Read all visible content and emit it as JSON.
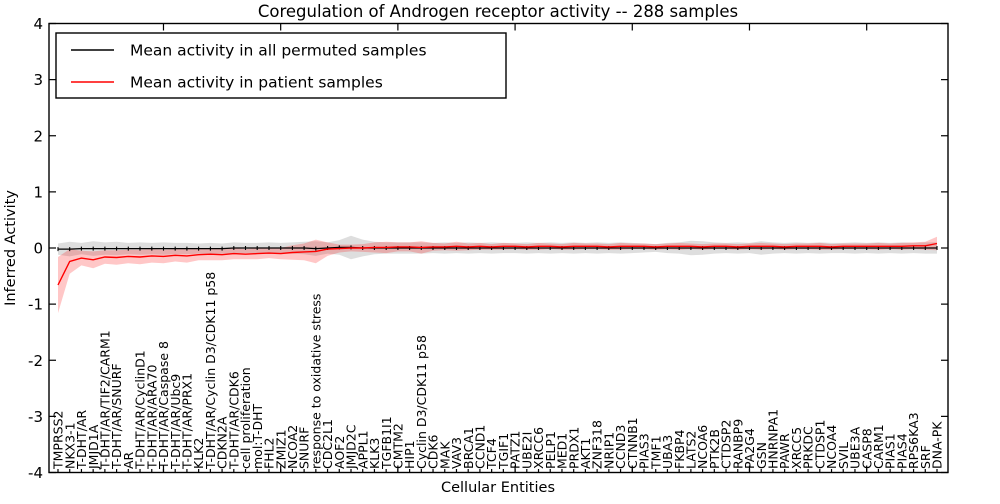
{
  "figure": {
    "title": "Coregulation of Androgen receptor activity -- 288 samples",
    "xlabel": "Cellular Entities",
    "ylabel": "Inferred Activity"
  },
  "legend": {
    "entries": [
      {
        "label": "Mean activity in all permuted samples",
        "color": "#000000"
      },
      {
        "label": "Mean activity in patient samples",
        "color": "#ff0000"
      }
    ]
  },
  "chart_data": {
    "type": "line",
    "title": "Coregulation of Androgen receptor activity -- 288 samples",
    "xlabel": "Cellular Entities",
    "ylabel": "Inferred Activity",
    "ylim": [
      -4,
      4
    ],
    "yticks": [
      -4,
      -3,
      -2,
      -1,
      0,
      1,
      2,
      3,
      4
    ],
    "grid": false,
    "legend_position": "upper left",
    "categories": [
      "TMPRSS2",
      "NKX3-1",
      "T-DHT/AR",
      "JMJD1A",
      "T-DHT/AR/TIF2/CARM1",
      "T-DHT/AR/SNURF",
      "AR",
      "T-DHT/AR/CyclinD1",
      "T-DHT/AR/ARA70",
      "T-DHT/AR/Caspase 8",
      "T-DHT/AR/Ubc9",
      "T-DHT/AR/PRX1",
      "KLK2",
      "T-DHT/AR/Cyclin D3/CDK11 p58",
      "CDKN2A",
      "T-DHT/AR/CDK6",
      "cell proliferation",
      "mol:T-DHT",
      "FHL2",
      "ZMIZ1",
      "NCOA2",
      "SNURF",
      "response to oxidative stress",
      "CDC2L1",
      "AOF2",
      "JMJD2C",
      "APPL1",
      "KLK3",
      "TGFB1I1",
      "CMTM2",
      "HIP1",
      "Cyclin D3/CDK11 p58",
      "CDK6",
      "MAK",
      "VAV3",
      "BRCA1",
      "CCND1",
      "TCF4",
      "TGIF1",
      "PATZ1",
      "UBE2I",
      "XRCC6",
      "PELP1",
      "MED1",
      "PRDX1",
      "AKT1",
      "ZNF318",
      "NRIP1",
      "CCND3",
      "CTNNB1",
      "PIAS3",
      "TMF1",
      "UBA3",
      "FKBP4",
      "LATS2",
      "NCOA6",
      "PTK2B",
      "CTDSP2",
      "RANBP9",
      "PA2G4",
      "GSN",
      "HNRNPA1",
      "PAWR",
      "XRCC5",
      "PRKDC",
      "CTDSP1",
      "NCOA4",
      "SVIL",
      "UBE3A",
      "CASP8",
      "CARM1",
      "PIAS1",
      "PIAS4",
      "RPS6KA3",
      "SRF",
      "DNA-PK"
    ],
    "series": [
      {
        "name": "Mean activity in all permuted samples",
        "color": "#000000",
        "band_color": "#000000",
        "band_opacity": 0.13,
        "values": [
          -0.02,
          -0.02,
          -0.01,
          -0.01,
          -0.01,
          -0.01,
          -0.01,
          -0.01,
          -0.01,
          -0.01,
          -0.01,
          -0.01,
          -0.01,
          -0.01,
          -0.01,
          0.0,
          0.0,
          0.0,
          0.0,
          0.0,
          0.0,
          0.0,
          -0.01,
          0.0,
          0.01,
          0.01,
          0.0,
          0.0,
          0.0,
          0.0,
          0.0,
          0.0,
          0.0,
          0.0,
          0.0,
          0.0,
          0.0,
          0.0,
          0.0,
          0.0,
          0.0,
          0.0,
          0.0,
          0.0,
          0.0,
          0.0,
          0.0,
          0.0,
          0.0,
          0.0,
          0.0,
          0.0,
          0.0,
          0.0,
          0.0,
          0.0,
          0.0,
          0.0,
          0.0,
          0.0,
          0.0,
          0.0,
          0.0,
          0.0,
          0.0,
          0.0,
          0.0,
          0.0,
          0.0,
          0.0,
          0.0,
          0.0,
          0.0,
          0.0,
          0.0,
          0.0
        ],
        "band_halfwidth": [
          0.1,
          0.13,
          0.1,
          0.13,
          0.11,
          0.12,
          0.1,
          0.11,
          0.1,
          0.11,
          0.1,
          0.1,
          0.09,
          0.1,
          0.09,
          0.1,
          0.09,
          0.09,
          0.1,
          0.09,
          0.1,
          0.11,
          0.13,
          0.1,
          0.13,
          0.21,
          0.15,
          0.11,
          0.1,
          0.1,
          0.1,
          0.1,
          0.09,
          0.1,
          0.09,
          0.1,
          0.09,
          0.1,
          0.09,
          0.09,
          0.1,
          0.09,
          0.1,
          0.09,
          0.1,
          0.09,
          0.1,
          0.09,
          0.1,
          0.09,
          0.08,
          0.07,
          0.09,
          0.1,
          0.13,
          0.12,
          0.1,
          0.09,
          0.1,
          0.09,
          0.12,
          0.1,
          0.09,
          0.1,
          0.09,
          0.1,
          0.09,
          0.09,
          0.1,
          0.09,
          0.1,
          0.09,
          0.1,
          0.09,
          0.1,
          0.1
        ]
      },
      {
        "name": "Mean activity in patient samples",
        "color": "#ff0000",
        "band_color": "#ff0000",
        "band_opacity": 0.22,
        "values": [
          -0.66,
          -0.24,
          -0.18,
          -0.21,
          -0.16,
          -0.17,
          -0.15,
          -0.16,
          -0.14,
          -0.15,
          -0.13,
          -0.14,
          -0.12,
          -0.11,
          -0.12,
          -0.1,
          -0.11,
          -0.1,
          -0.09,
          -0.1,
          -0.08,
          -0.07,
          -0.06,
          -0.02,
          -0.01,
          0.0,
          0.0,
          0.01,
          0.01,
          0.02,
          0.02,
          0.01,
          0.02,
          0.02,
          0.03,
          0.02,
          0.03,
          0.02,
          0.03,
          0.03,
          0.02,
          0.03,
          0.03,
          0.02,
          0.03,
          0.03,
          0.03,
          0.02,
          0.03,
          0.03,
          0.03,
          0.02,
          0.03,
          0.03,
          0.03,
          0.02,
          0.03,
          0.03,
          0.02,
          0.03,
          0.03,
          0.03,
          0.02,
          0.03,
          0.03,
          0.03,
          0.02,
          0.03,
          0.03,
          0.03,
          0.03,
          0.03,
          0.03,
          0.04,
          0.04,
          0.08
        ],
        "band_halfwidth": [
          0.5,
          0.22,
          0.13,
          0.15,
          0.12,
          0.13,
          0.12,
          0.13,
          0.12,
          0.12,
          0.11,
          0.12,
          0.1,
          0.11,
          0.1,
          0.1,
          0.09,
          0.1,
          0.09,
          0.1,
          0.13,
          0.15,
          0.21,
          0.12,
          0.07,
          0.06,
          0.07,
          0.09,
          0.1,
          0.08,
          0.08,
          0.11,
          0.07,
          0.06,
          0.08,
          0.06,
          0.06,
          0.05,
          0.06,
          0.05,
          0.05,
          0.06,
          0.05,
          0.05,
          0.06,
          0.05,
          0.05,
          0.05,
          0.06,
          0.05,
          0.05,
          0.05,
          0.05,
          0.06,
          0.05,
          0.05,
          0.05,
          0.05,
          0.05,
          0.05,
          0.06,
          0.05,
          0.05,
          0.05,
          0.05,
          0.06,
          0.05,
          0.05,
          0.05,
          0.05,
          0.06,
          0.05,
          0.06,
          0.06,
          0.07,
          0.12
        ]
      }
    ]
  }
}
